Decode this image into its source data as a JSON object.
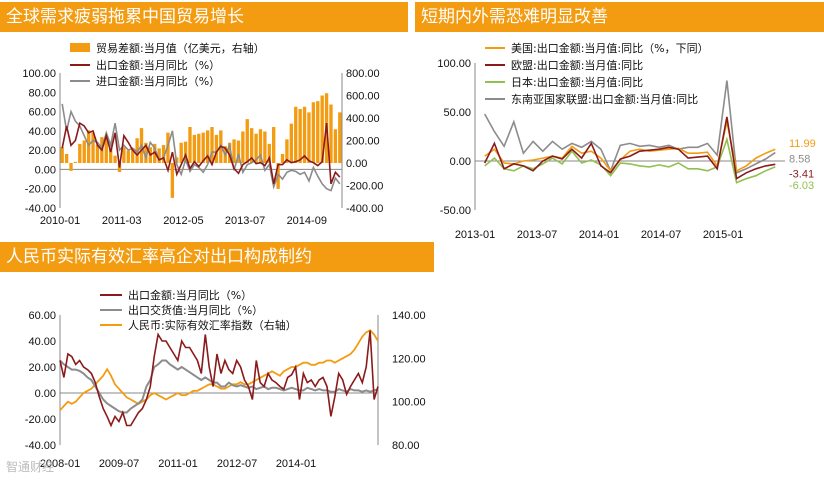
{
  "panels": [
    {
      "title": "全球需求疲弱拖累中国贸易增长"
    },
    {
      "title": "短期内外需恐难明显改善"
    },
    {
      "title": "人民币实际有效汇率高企对出口构成制约"
    }
  ],
  "watermark": "智通财经",
  "colors": {
    "orange": "#f39c12",
    "darkred": "#8b1a1a",
    "gray": "#8c8c8c",
    "green": "#92c050",
    "header": "#f39c12"
  },
  "chart_data": [
    {
      "type": "bar+line",
      "title": "全球需求疲弱拖累中国贸易增长",
      "x_tick_labels": [
        "2010-01",
        "2011-03",
        "2012-05",
        "2013-07",
        "2014-09"
      ],
      "ylim_left": [
        -40,
        100
      ],
      "ylim_right": [
        -400,
        800
      ],
      "left_ticks": [
        "100.00",
        "80.00",
        "60.00",
        "40.00",
        "20.00",
        "0.00",
        "-20.00",
        "-40.00"
      ],
      "right_ticks": [
        "800.00",
        "600.00",
        "400.00",
        "200.00",
        "0.00",
        "-200.00",
        "-400.00"
      ],
      "months": 64,
      "series": [
        {
          "name": "贸易差额:当月值（亿美元，右轴）",
          "kind": "bar",
          "axis": "right",
          "values": [
            140,
            80,
            -70,
            10,
            170,
            200,
            290,
            270,
            160,
            230,
            230,
            130,
            65,
            -80,
            140,
            110,
            130,
            220,
            310,
            180,
            140,
            170,
            130,
            160,
            270,
            -310,
            50,
            180,
            190,
            320,
            250,
            260,
            270,
            290,
            320,
            250,
            290,
            150,
            180,
            210,
            200,
            280,
            390,
            310,
            260,
            300,
            280,
            170,
            320,
            -230,
            80,
            210,
            350,
            500,
            480,
            500,
            450,
            540,
            550,
            600,
            620,
            520,
            300,
            450
          ]
        },
        {
          "name": "出口金额:当月同比（%）",
          "kind": "line",
          "axis": "left",
          "values": [
            22,
            45,
            25,
            30,
            48,
            45,
            38,
            40,
            25,
            20,
            35,
            18,
            38,
            2,
            35,
            28,
            20,
            15,
            20,
            25,
            15,
            18,
            10,
            12,
            -1,
            18,
            -5,
            5,
            15,
            1,
            8,
            3,
            9,
            14,
            5,
            18,
            24,
            22,
            15,
            1,
            -4,
            5,
            8,
            12,
            6,
            7,
            4,
            12,
            -15,
            5,
            5,
            10,
            7,
            8,
            10,
            14,
            9,
            7,
            4,
            8,
            48,
            -15,
            -3,
            -8
          ]
        },
        {
          "name": "进口金额:当月同比（%）",
          "kind": "line",
          "axis": "left",
          "values": [
            68,
            40,
            60,
            50,
            45,
            35,
            25,
            30,
            28,
            22,
            38,
            25,
            48,
            20,
            25,
            20,
            22,
            18,
            25,
            12,
            28,
            22,
            10,
            12,
            25,
            40,
            5,
            -5,
            10,
            -2,
            5,
            2,
            -3,
            5,
            18,
            18,
            25,
            15,
            25,
            -1,
            16,
            -3,
            5,
            7,
            10,
            15,
            -1,
            5,
            -18,
            -5,
            -10,
            -3,
            -1,
            -2,
            -5,
            -3,
            -12,
            2,
            -7,
            -15,
            -20,
            -22,
            -9,
            -15
          ]
        }
      ]
    },
    {
      "type": "line",
      "title": "短期内外需恐难明显改善",
      "x_tick_labels": [
        "2013-01",
        "2013-07",
        "2014-01",
        "2014-07",
        "2015-01"
      ],
      "ylim": [
        -50,
        100
      ],
      "y_ticks": [
        "100.00",
        "50.00",
        "0.00",
        "-50.00"
      ],
      "end_labels": [
        "11.99",
        "8.58",
        "-3.41",
        "-6.03"
      ],
      "series": [
        {
          "name": "美国:出口金额:当月值:同比（%，下同）",
          "values": [
            5,
            12,
            -2,
            -3,
            0,
            1,
            3,
            5,
            3,
            15,
            8,
            10,
            3,
            -10,
            1,
            10,
            12,
            10,
            11,
            12,
            13,
            8,
            8,
            9,
            -5,
            40,
            -10,
            -5,
            3,
            8,
            12
          ]
        },
        {
          "name": "欧盟:出口金额:当月值:同比",
          "values": [
            -2,
            18,
            -8,
            -3,
            -5,
            -10,
            0,
            5,
            2,
            12,
            3,
            18,
            -5,
            -12,
            2,
            5,
            10,
            11,
            12,
            14,
            12,
            3,
            4,
            5,
            -8,
            45,
            -18,
            -12,
            -8,
            -5,
            -3.41
          ]
        },
        {
          "name": "日本:出口金额:当月值:同比",
          "values": [
            -5,
            3,
            -8,
            -10,
            -5,
            -8,
            -3,
            3,
            -3,
            10,
            -2,
            1,
            -4,
            -15,
            -2,
            -3,
            -5,
            -6,
            -4,
            -6,
            -2,
            -8,
            -8,
            -10,
            -6,
            22,
            -22,
            -18,
            -15,
            -10,
            -6.03
          ]
        },
        {
          "name": "东南亚国家联盟:出口金额:当月值:同比",
          "values": [
            48,
            30,
            15,
            40,
            8,
            20,
            10,
            20,
            12,
            18,
            14,
            20,
            12,
            -10,
            16,
            18,
            15,
            16,
            14,
            16,
            12,
            14,
            14,
            18,
            6,
            82,
            -12,
            -8,
            -3,
            2,
            8.58
          ]
        }
      ]
    },
    {
      "type": "line",
      "title": "人民币实际有效汇率高企对出口构成制约",
      "x_tick_labels": [
        "2008-01",
        "2009-07",
        "2011-01",
        "2012-07",
        "2014-01"
      ],
      "ylim_left": [
        -40,
        60
      ],
      "ylim_right": [
        80,
        140
      ],
      "left_ticks": [
        "60.00",
        "40.00",
        "20.00",
        "0.00",
        "-20.00",
        "-40.00"
      ],
      "right_ticks": [
        "140.00",
        "120.00",
        "100.00",
        "80.00"
      ],
      "series": [
        {
          "name": "出口金额:当月同比（%）",
          "axis": "left",
          "values": [
            25,
            12,
            30,
            28,
            22,
            25,
            20,
            18,
            15,
            8,
            -3,
            -12,
            -18,
            -25,
            -18,
            -22,
            -15,
            -25,
            -25,
            -20,
            -15,
            -12,
            -5,
            5,
            28,
            45,
            40,
            40,
            35,
            30,
            25,
            40,
            35,
            35,
            30,
            25,
            15,
            45,
            20,
            5,
            30,
            15,
            25,
            18,
            15,
            25,
            20,
            10,
            5,
            -5,
            25,
            8,
            5,
            15,
            10,
            8,
            5,
            3,
            12,
            14,
            20,
            -5,
            15,
            8,
            10,
            5,
            10,
            12,
            5,
            -18,
            -3,
            15,
            10,
            -1,
            5,
            10,
            15,
            8,
            20,
            48,
            -5,
            5
          ]
        },
        {
          "name": "出口交货值:当月同比（%）",
          "axis": "left",
          "values": [
            25,
            22,
            20,
            18,
            18,
            17,
            15,
            12,
            10,
            5,
            0,
            -5,
            -8,
            -10,
            -12,
            -14,
            -15,
            -15,
            -12,
            -10,
            -8,
            -5,
            5,
            10,
            20,
            22,
            25,
            25,
            22,
            20,
            18,
            20,
            18,
            16,
            14,
            12,
            10,
            12,
            10,
            8,
            8,
            5,
            5,
            8,
            6,
            5,
            6,
            5,
            4,
            5,
            3,
            4,
            5,
            3,
            4,
            4,
            3,
            2,
            3,
            4,
            3,
            2,
            2,
            4,
            3,
            2,
            3,
            2,
            2,
            1,
            1,
            3,
            2,
            1,
            3,
            2,
            2,
            1,
            2,
            1,
            2,
            3
          ]
        },
        {
          "name": "人民币:实际有效汇率指数（右轴）",
          "axis": "right",
          "values": [
            96,
            98,
            100,
            99,
            100,
            102,
            104,
            105,
            106,
            108,
            110,
            112,
            115,
            112,
            108,
            106,
            104,
            102,
            101,
            100,
            99,
            100,
            101,
            103,
            104,
            103,
            102,
            101,
            102,
            103,
            104,
            103,
            103,
            104,
            105,
            105,
            106,
            107,
            108,
            108,
            107,
            106,
            106,
            107,
            108,
            108,
            109,
            108,
            108,
            109,
            110,
            111,
            112,
            113,
            114,
            113,
            112,
            114,
            115,
            116,
            116,
            117,
            118,
            118,
            117,
            117,
            118,
            118,
            119,
            119,
            118,
            119,
            120,
            121,
            122,
            124,
            127,
            130,
            132,
            133,
            131,
            128
          ]
        }
      ]
    }
  ]
}
